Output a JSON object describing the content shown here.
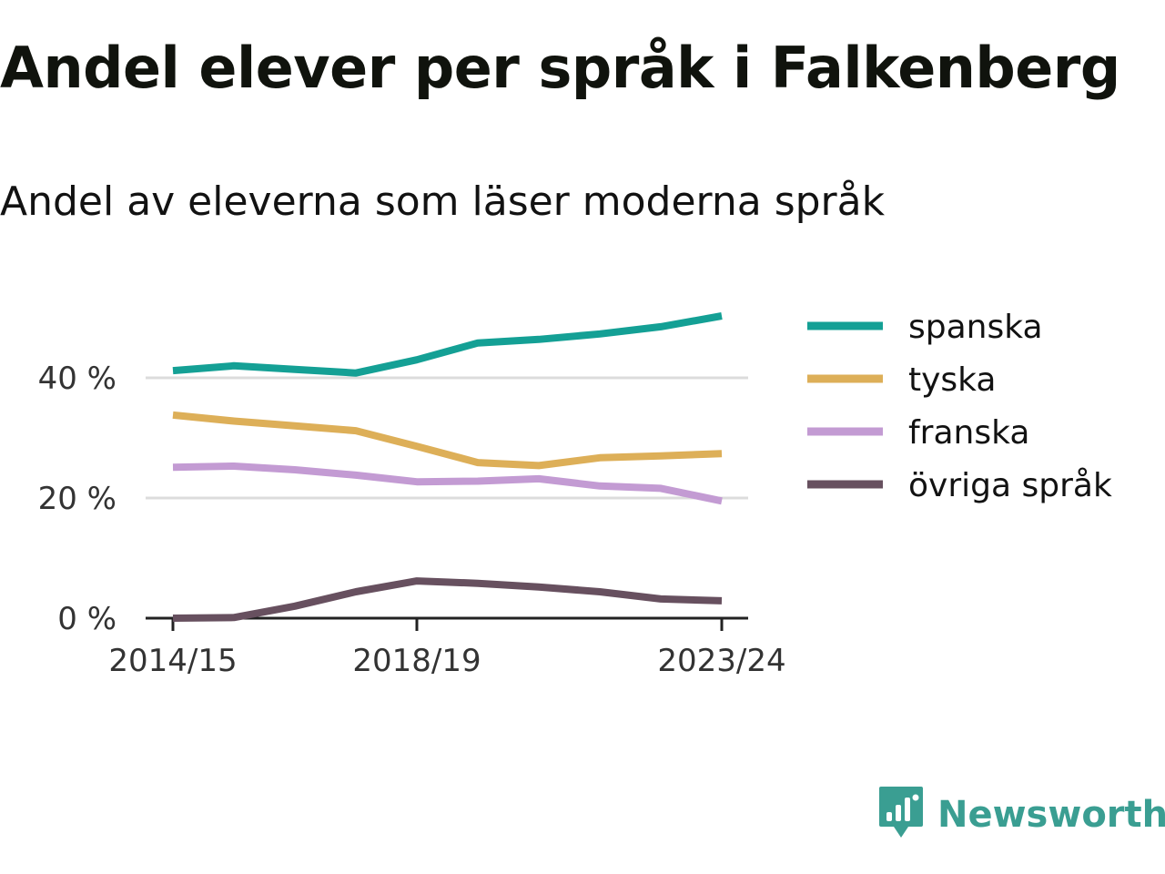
{
  "title": "Andel elever per språk i Falkenberg",
  "subtitle": "Andel av eleverna som läser moderna språk",
  "brand": {
    "name": "Newsworthy",
    "color": "#3a9e92",
    "icon": "newsworthy-logo-icon"
  },
  "chart_data": {
    "type": "line",
    "title": "Andel elever per språk i Falkenberg",
    "subtitle": "Andel av eleverna som läser moderna språk",
    "xlabel": "",
    "ylabel": "",
    "x": [
      "2014/15",
      "2015/16",
      "2016/17",
      "2017/18",
      "2018/19",
      "2019/20",
      "2020/21",
      "2021/22",
      "2022/23",
      "2023/24"
    ],
    "x_ticks": [
      "2014/15",
      "2018/19",
      "2023/24"
    ],
    "y_ticks": [
      0,
      20,
      40
    ],
    "y_tick_labels": [
      "0 %",
      "20 %",
      "40 %"
    ],
    "ylim": [
      0,
      52
    ],
    "grid": true,
    "legend_position": "right",
    "series": [
      {
        "name": "spanska",
        "color": "#14a095",
        "values": [
          41.2,
          42.0,
          41.4,
          40.8,
          43.0,
          45.8,
          46.4,
          47.3,
          48.5,
          50.3
        ]
      },
      {
        "name": "tyska",
        "color": "#ddaf58",
        "values": [
          33.8,
          32.8,
          32.0,
          31.2,
          28.6,
          25.9,
          25.4,
          26.7,
          27.0,
          27.4
        ]
      },
      {
        "name": "franska",
        "color": "#c39bd3",
        "values": [
          25.1,
          25.3,
          24.7,
          23.8,
          22.7,
          22.8,
          23.2,
          22.0,
          21.6,
          19.5
        ]
      },
      {
        "name": "övriga språk",
        "color": "#67505f",
        "values": [
          0,
          0.1,
          2.0,
          4.4,
          6.2,
          5.8,
          5.2,
          4.4,
          3.2,
          2.9
        ]
      }
    ]
  }
}
